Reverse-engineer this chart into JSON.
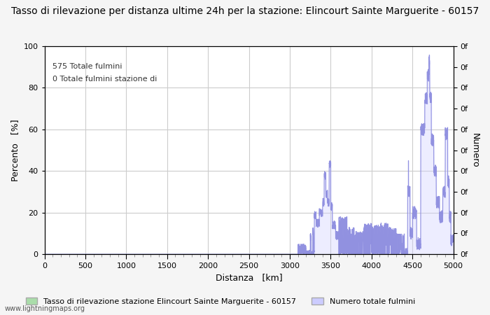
{
  "title": "Tasso di rilevazione per distanza ultime 24h per la stazione: Elincourt Sainte Marguerite - 60157",
  "xlabel": "Distanza   [km]",
  "ylabel_left": "Percento   [%]",
  "ylabel_right": "Numero",
  "annotation_line1": "575 Totale fulmini",
  "annotation_line2": "0 Totale fulmini stazione di",
  "legend_label1": "Tasso di rilevazione stazione Elincourt Sainte Marguerite - 60157",
  "legend_label2": "Numero totale fulmini",
  "footer": "www.lightningmaps.org",
  "xlim": [
    0,
    5000
  ],
  "ylim": [
    0,
    100
  ],
  "x_ticks": [
    0,
    500,
    1000,
    1500,
    2000,
    2500,
    3000,
    3500,
    4000,
    4500,
    5000
  ],
  "y_ticks_left": [
    0,
    20,
    40,
    60,
    80,
    100
  ],
  "y_ticks_right_labels": [
    "0f",
    "0f",
    "0f",
    "0f",
    "0f",
    "0f",
    "0f",
    "0f",
    "0f",
    "0f",
    "0f"
  ],
  "bg_color": "#f5f5f5",
  "plot_bg_color": "#ffffff",
  "line_color": "#8888dd",
  "fill_color": "#ccccff",
  "green_fill_color": "#aaddaa",
  "title_fontsize": 10,
  "axis_fontsize": 9,
  "tick_fontsize": 8,
  "legend_fontsize": 8,
  "figsize": [
    7.0,
    4.5
  ],
  "dpi": 100
}
